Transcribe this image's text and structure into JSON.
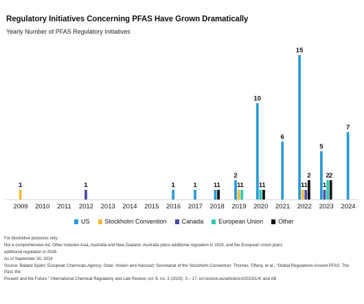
{
  "title": "Regulatory Initiatives Concerning PFAS Have Grown Dramatically",
  "subtitle": "Yearly Number of PFAS Regulatory Initiatives",
  "chart_data": {
    "type": "bar",
    "categories": [
      "2009",
      "2010",
      "2011",
      "2012",
      "2013",
      "2014",
      "2015",
      "2016",
      "2017",
      "2018",
      "2019",
      "2020",
      "2021",
      "2022",
      "2023",
      "2024"
    ],
    "series": [
      {
        "name": "US",
        "color": "#2b9bd6",
        "values": [
          0,
          0,
          0,
          0,
          0,
          0,
          0,
          1,
          1,
          1,
          2,
          10,
          6,
          15,
          5,
          7
        ]
      },
      {
        "name": "Stockholm Convention",
        "color": "#f5b83a",
        "values": [
          1,
          0,
          0,
          0,
          0,
          0,
          0,
          0,
          0,
          0,
          1,
          0,
          0,
          1,
          0,
          0
        ]
      },
      {
        "name": "Canada",
        "color": "#4b4aa8",
        "values": [
          0,
          0,
          0,
          1,
          0,
          0,
          0,
          0,
          0,
          0,
          0,
          0,
          0,
          1,
          1,
          0
        ]
      },
      {
        "name": "European Union",
        "color": "#2ec9b4",
        "values": [
          0,
          0,
          0,
          0,
          0,
          0,
          0,
          0,
          0,
          0,
          1,
          1,
          0,
          0,
          2,
          0
        ]
      },
      {
        "name": "Other",
        "color": "#111111",
        "values": [
          0,
          0,
          0,
          0,
          0,
          0,
          0,
          0,
          0,
          1,
          0,
          1,
          0,
          2,
          2,
          0
        ]
      }
    ],
    "ylim": [
      0,
      15
    ],
    "grid": false,
    "legend": "bottom"
  },
  "legend": [
    {
      "label": "US",
      "color": "#2b9bd6"
    },
    {
      "label": "Stockholm Convention",
      "color": "#f5b83a"
    },
    {
      "label": "Canada",
      "color": "#4b4aa8"
    },
    {
      "label": "European Union",
      "color": "#2ec9b4"
    },
    {
      "label": "Other",
      "color": "#111111"
    }
  ],
  "notes": {
    "illustrative": "For illustrative purposes only.",
    "line1": "Not a comprehensive list. Other includes Asia, Australia and New Zealand. Australia plans additional regulation in 2025, and the European Union plans",
    "line2": "additional regulation in 2026.",
    "asof": "As of September 30, 2024",
    "source1": "Source: Ballard Spahr; European Chemicals Agency; Osler, Hoskin and Harcourt; Secretariat of the Stockholm Convention; Thomas, Tiffany, et al., \"Global Regulations Around PFAS: The Past, the",
    "source2": "Present and the Future,\" International Chemical Regulatory and Law Review, vol. 6, no. 3 (2023): 3 – 17, icrl.lexxion.eu/article/icrl/2023/1/4; and AB"
  }
}
